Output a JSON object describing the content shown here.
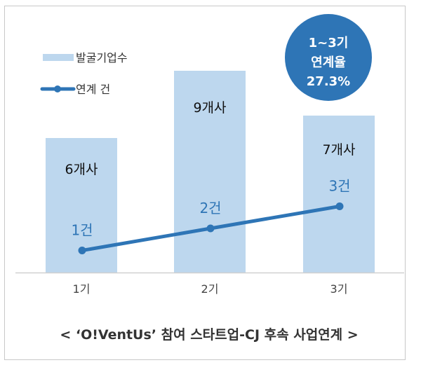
{
  "chart_data": {
    "type": "bar+line",
    "title": "< ‘O!VentUs’ 참여 스타트업-CJ 후속 사업연계 >",
    "categories": [
      "1기",
      "2기",
      "3기"
    ],
    "series": [
      {
        "name": "발굴기업수",
        "type": "bar",
        "values": [
          6,
          9,
          7
        ],
        "labels": [
          "6개사",
          "9개사",
          "7개사"
        ],
        "color": "#bdd7ee"
      },
      {
        "name": "연계 건",
        "type": "line",
        "values": [
          1,
          2,
          3
        ],
        "labels": [
          "1건",
          "2건",
          "3건"
        ],
        "color": "#2e75b6"
      }
    ],
    "legend": {
      "position": "top-left",
      "items": [
        "발굴기업수",
        "연계 건"
      ]
    },
    "annotation": {
      "lines": [
        "1~3기",
        "연계율",
        "27.3%"
      ],
      "color": "#2e75b6"
    },
    "grid": false,
    "ylim": [
      0,
      12
    ]
  }
}
